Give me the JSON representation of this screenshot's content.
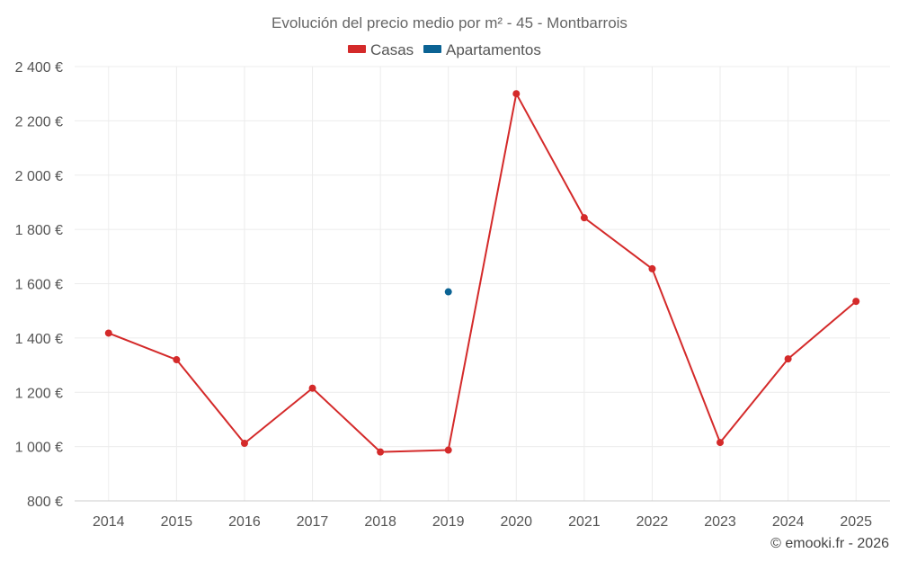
{
  "chart_data": {
    "type": "line",
    "title": "Evolución del precio medio por m² - 45 - Montbarrois",
    "categories": [
      "2014",
      "2015",
      "2016",
      "2017",
      "2018",
      "2019",
      "2020",
      "2021",
      "2022",
      "2023",
      "2024",
      "2025"
    ],
    "series": [
      {
        "name": "Casas",
        "color": "#d42a2a",
        "values": [
          1418,
          1320,
          1012,
          1215,
          980,
          987,
          2300,
          1843,
          1655,
          1015,
          1323,
          1535
        ]
      },
      {
        "name": "Apartamentos",
        "color": "#0b6394",
        "values": [
          null,
          null,
          null,
          null,
          null,
          1570,
          null,
          null,
          null,
          null,
          null,
          null
        ]
      }
    ],
    "ylim": [
      800,
      2400
    ],
    "yticks": [
      800,
      1000,
      1200,
      1400,
      1600,
      1800,
      2000,
      2200,
      2400
    ],
    "ytick_labels": [
      "800 €",
      "1 000 €",
      "1 200 €",
      "1 400 €",
      "1 600 €",
      "1 800 €",
      "2 000 €",
      "2 200 €",
      "2 400 €"
    ],
    "grid": true,
    "legend_position": "top-center",
    "credit": "© emooki.fr - 2026"
  }
}
